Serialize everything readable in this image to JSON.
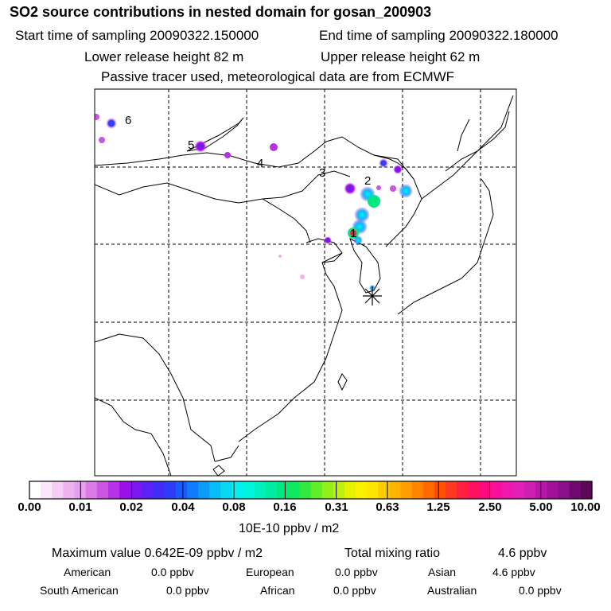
{
  "header": {
    "title": "SO2 source contributions in nested domain for gosan_200903",
    "start_label": "Start time of sampling 20090322.150000",
    "end_label": "End time of sampling 20090322.180000",
    "lower_label": "Lower release height   82 m",
    "upper_label": "Upper release height   62 m",
    "note": "Passive tracer used, meteorological data are from ECMWF"
  },
  "map": {
    "source_labels": [
      "1",
      "2",
      "3",
      "4",
      "5",
      "6"
    ],
    "receptor": "gosan (asterisk marker)"
  },
  "colorbar": {
    "unit": "10E-10 ppbv / m2",
    "tick_labels": [
      "0.00",
      "0.01",
      "0.02",
      "0.04",
      "0.08",
      "0.16",
      "0.31",
      "0.63",
      "1.25",
      "2.50",
      "5.00",
      "10.00"
    ],
    "colors": [
      "#ffffff",
      "#fbe6fb",
      "#f6cdf6",
      "#efb2ef",
      "#e6a0ef",
      "#dc7ae8",
      "#cc55e4",
      "#b532e6",
      "#9b10e8",
      "#7a18f0",
      "#5a22f4",
      "#3f2ef6",
      "#2c3cf8",
      "#1a5afa",
      "#0f7cfa",
      "#0a9cf8",
      "#08bcf6",
      "#06d8f4",
      "#04f0f0",
      "#00f6dc",
      "#00f0c0",
      "#00eca0",
      "#00e880",
      "#10e860",
      "#30ea40",
      "#60ee28",
      "#90f018",
      "#c0f010",
      "#e8f200",
      "#fbf000",
      "#ffe400",
      "#ffcc00",
      "#ffb400",
      "#ff9c00",
      "#ff8200",
      "#ff6a00",
      "#ff5000",
      "#ff3820",
      "#ff2040",
      "#ff1060",
      "#ff0880",
      "#f8109c",
      "#ee18b0",
      "#e020b8",
      "#cc20b0",
      "#b818a8",
      "#a01098",
      "#881088",
      "#700870",
      "#5c0858"
    ]
  },
  "summary": {
    "max_label": "Maximum value  0.642E-09 ppbv / m2",
    "total_label": "Total mixing ratio",
    "total_value": "4.6 ppbv",
    "regions": [
      {
        "name": "American",
        "value": "0.0 ppbv"
      },
      {
        "name": "European",
        "value": "0.0 ppbv"
      },
      {
        "name": "Asian",
        "value": "4.6 ppbv"
      },
      {
        "name": "South American",
        "value": "0.0 ppbv"
      },
      {
        "name": "African",
        "value": "0.0 ppbv"
      },
      {
        "name": "Australian",
        "value": "0.0 ppbv"
      }
    ]
  }
}
